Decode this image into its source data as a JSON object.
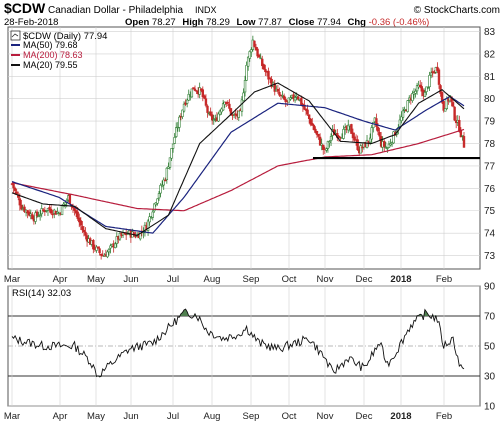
{
  "header": {
    "symbol": "$CDW",
    "name": "Canadian Dollar - Philadelphia",
    "exchange": "INDX",
    "brand": "© StockCharts.com",
    "date": "28-Feb-2018",
    "open_label": "Open",
    "open": "78.27",
    "high_label": "High",
    "high": "78.29",
    "low_label": "Low",
    "low": "77.87",
    "close_label": "Close",
    "close": "77.94",
    "chg_label": "Chg",
    "chg": "-0.36 (-0.46%)"
  },
  "legend": {
    "main": "$CDW (Daily) 77.94",
    "ma50": "MA(50) 79.68",
    "ma200": "MA(200) 78.63",
    "ma20": "MA(20) 79.55",
    "rsi": "RSI(14) 32.03"
  },
  "colors": {
    "up": "#2e7d32",
    "down": "#c62828",
    "ma50": "#1a237e",
    "ma200": "#b71c3c",
    "ma20": "#111111",
    "rsi_fill": "#4f7f4f",
    "grid": "#d0d0d0"
  },
  "x_axis": {
    "month_labels": [
      "Mar",
      "Apr",
      "May",
      "Jun",
      "Jul",
      "Aug",
      "Sep",
      "Oct",
      "Nov",
      "Dec",
      "2018",
      "Feb"
    ]
  },
  "chart_data": {
    "type": "candlestick",
    "title": "$CDW Canadian Dollar - Philadelphia INDX",
    "price_ticks": [
      "73",
      "74",
      "75",
      "76",
      "77",
      "78",
      "79",
      "80",
      "81",
      "82",
      "83"
    ],
    "ylim": [
      72.4,
      83.2
    ],
    "support_level": 77.35,
    "rsi_ticks": [
      "10",
      "30",
      "50",
      "70",
      "90"
    ],
    "rsi_ylim": [
      10,
      90
    ],
    "rsi_overbought": 70,
    "rsi_oversold": 30,
    "anchors": [
      [
        0,
        76.2
      ],
      [
        6,
        75.2
      ],
      [
        14,
        74.7
      ],
      [
        22,
        75.1
      ],
      [
        30,
        74.9
      ],
      [
        36,
        75.6
      ],
      [
        40,
        75.0
      ],
      [
        46,
        74.0
      ],
      [
        52,
        73.4
      ],
      [
        58,
        73.0
      ],
      [
        62,
        73.2
      ],
      [
        68,
        73.8
      ],
      [
        74,
        74.0
      ],
      [
        80,
        73.9
      ],
      [
        86,
        74.3
      ],
      [
        92,
        75.5
      ],
      [
        98,
        76.5
      ],
      [
        104,
        78.3
      ],
      [
        110,
        79.8
      ],
      [
        116,
        80.5
      ],
      [
        121,
        80.3
      ],
      [
        126,
        79.2
      ],
      [
        130,
        79.0
      ],
      [
        136,
        80.0
      ],
      [
        141,
        79.2
      ],
      [
        146,
        79.3
      ],
      [
        150,
        81.5
      ],
      [
        154,
        82.6
      ],
      [
        158,
        81.8
      ],
      [
        162,
        81.2
      ],
      [
        166,
        80.7
      ],
      [
        170,
        80.2
      ],
      [
        176,
        79.8
      ],
      [
        182,
        80.2
      ],
      [
        188,
        79.4
      ],
      [
        194,
        78.5
      ],
      [
        200,
        77.6
      ],
      [
        205,
        78.5
      ],
      [
        210,
        78.4
      ],
      [
        216,
        78.7
      ],
      [
        222,
        77.7
      ],
      [
        228,
        78.1
      ],
      [
        232,
        79.0
      ],
      [
        236,
        78.0
      ],
      [
        240,
        77.8
      ],
      [
        245,
        78.5
      ],
      [
        250,
        79.3
      ],
      [
        255,
        80.1
      ],
      [
        260,
        80.5
      ],
      [
        264,
        80.2
      ],
      [
        268,
        81.1
      ],
      [
        272,
        81.4
      ],
      [
        274,
        80.2
      ],
      [
        276,
        79.6
      ],
      [
        280,
        80.1
      ],
      [
        283,
        79.2
      ],
      [
        286,
        78.7
      ],
      [
        289,
        77.94
      ]
    ],
    "ma50_anchors": [
      [
        0,
        76.3
      ],
      [
        30,
        75.6
      ],
      [
        60,
        74.3
      ],
      [
        90,
        74.0
      ],
      [
        110,
        75.6
      ],
      [
        140,
        78.5
      ],
      [
        170,
        79.8
      ],
      [
        200,
        79.6
      ],
      [
        225,
        79.0
      ],
      [
        245,
        78.6
      ],
      [
        265,
        79.5
      ],
      [
        280,
        80.1
      ],
      [
        289,
        79.68
      ]
    ],
    "ma200_anchors": [
      [
        0,
        76.25
      ],
      [
        40,
        75.7
      ],
      [
        80,
        75.1
      ],
      [
        110,
        75.0
      ],
      [
        140,
        75.9
      ],
      [
        170,
        77.0
      ],
      [
        200,
        77.4
      ],
      [
        230,
        77.5
      ],
      [
        260,
        78.0
      ],
      [
        289,
        78.63
      ]
    ],
    "ma20_anchors": [
      [
        0,
        75.8
      ],
      [
        20,
        75.3
      ],
      [
        40,
        75.2
      ],
      [
        60,
        74.2
      ],
      [
        80,
        73.9
      ],
      [
        100,
        74.8
      ],
      [
        120,
        78.0
      ],
      [
        140,
        79.3
      ],
      [
        155,
        80.3
      ],
      [
        170,
        80.7
      ],
      [
        190,
        79.9
      ],
      [
        210,
        78.1
      ],
      [
        230,
        78.0
      ],
      [
        245,
        78.4
      ],
      [
        260,
        79.8
      ],
      [
        275,
        80.4
      ],
      [
        289,
        79.55
      ]
    ],
    "rsi_anchors": [
      [
        0,
        55
      ],
      [
        20,
        50
      ],
      [
        40,
        50
      ],
      [
        50,
        40
      ],
      [
        55,
        30
      ],
      [
        62,
        37
      ],
      [
        75,
        48
      ],
      [
        90,
        52
      ],
      [
        100,
        62
      ],
      [
        110,
        72
      ],
      [
        118,
        71
      ],
      [
        125,
        60
      ],
      [
        135,
        55
      ],
      [
        145,
        58
      ],
      [
        150,
        62
      ],
      [
        158,
        52
      ],
      [
        170,
        48
      ],
      [
        190,
        55
      ],
      [
        200,
        42
      ],
      [
        205,
        32
      ],
      [
        215,
        42
      ],
      [
        225,
        35
      ],
      [
        235,
        52
      ],
      [
        240,
        38
      ],
      [
        245,
        45
      ],
      [
        255,
        64
      ],
      [
        265,
        72
      ],
      [
        272,
        68
      ],
      [
        276,
        50
      ],
      [
        282,
        55
      ],
      [
        286,
        38
      ],
      [
        289,
        32.03
      ]
    ]
  }
}
